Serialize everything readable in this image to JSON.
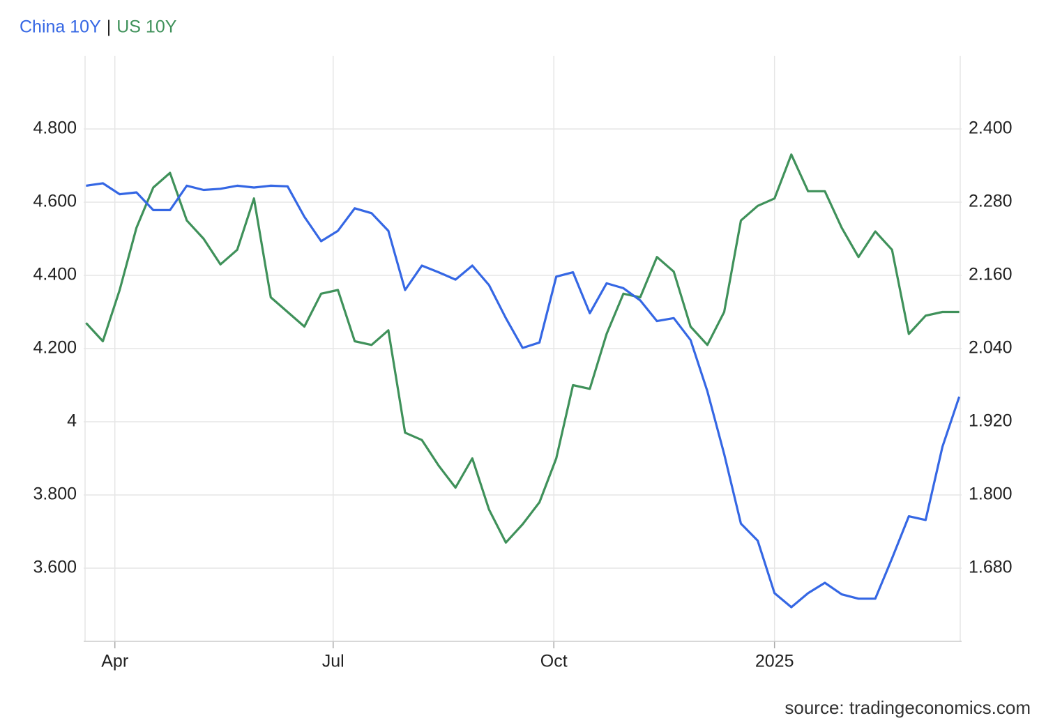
{
  "chart_data": {
    "type": "line",
    "title_separator": "|",
    "source": "source: tradingeconomics.com",
    "x": [
      "2024-03-20",
      "2024-03-27",
      "2024-04-03",
      "2024-04-10",
      "2024-04-17",
      "2024-04-24",
      "2024-05-01",
      "2024-05-08",
      "2024-05-15",
      "2024-05-22",
      "2024-05-29",
      "2024-06-05",
      "2024-06-12",
      "2024-06-19",
      "2024-06-26",
      "2024-07-03",
      "2024-07-10",
      "2024-07-17",
      "2024-07-24",
      "2024-07-31",
      "2024-08-07",
      "2024-08-14",
      "2024-08-21",
      "2024-08-28",
      "2024-09-04",
      "2024-09-11",
      "2024-09-18",
      "2024-09-25",
      "2024-10-02",
      "2024-10-09",
      "2024-10-16",
      "2024-10-23",
      "2024-10-30",
      "2024-11-06",
      "2024-11-13",
      "2024-11-20",
      "2024-11-27",
      "2024-12-04",
      "2024-12-11",
      "2024-12-18",
      "2024-12-25",
      "2025-01-01",
      "2025-01-08",
      "2025-01-15",
      "2025-01-22",
      "2025-01-29",
      "2025-02-05",
      "2025-02-12",
      "2025-02-19",
      "2025-02-26",
      "2025-03-05",
      "2025-03-12",
      "2025-03-19"
    ],
    "series": [
      {
        "name": "China 10Y",
        "color": "#3567e4",
        "axis": "y2",
        "values": [
          2.307,
          2.311,
          2.293,
          2.296,
          2.267,
          2.267,
          2.307,
          2.3,
          2.302,
          2.307,
          2.304,
          2.307,
          2.306,
          2.256,
          2.216,
          2.233,
          2.27,
          2.262,
          2.233,
          2.136,
          2.176,
          2.165,
          2.153,
          2.176,
          2.144,
          2.09,
          2.041,
          2.05,
          2.158,
          2.165,
          2.098,
          2.147,
          2.139,
          2.119,
          2.085,
          2.09,
          2.054,
          1.97,
          1.867,
          1.753,
          1.725,
          1.639,
          1.616,
          1.639,
          1.656,
          1.637,
          1.63,
          1.63,
          1.696,
          1.765,
          1.759,
          1.879,
          1.961
        ]
      },
      {
        "name": "US 10Y",
        "color": "#3f915a",
        "values": [
          4.27,
          4.22,
          4.36,
          4.53,
          4.64,
          4.68,
          4.55,
          4.5,
          4.43,
          4.47,
          4.61,
          4.34,
          4.3,
          4.26,
          4.35,
          4.36,
          4.22,
          4.21,
          4.25,
          3.97,
          3.95,
          3.88,
          3.82,
          3.9,
          3.76,
          3.67,
          3.72,
          3.78,
          3.9,
          4.1,
          4.09,
          4.24,
          4.35,
          4.34,
          4.45,
          4.41,
          4.26,
          4.21,
          4.3,
          4.55,
          4.59,
          4.61,
          4.73,
          4.63,
          4.63,
          4.53,
          4.45,
          4.52,
          4.47,
          4.24,
          4.29,
          4.3,
          4.3
        ]
      }
    ],
    "xlim": [
      "2024-03-19",
      "2025-03-20"
    ],
    "xticks": [
      {
        "value": "2024-04-01",
        "label": "Apr"
      },
      {
        "value": "2024-07-01",
        "label": "Jul"
      },
      {
        "value": "2024-10-01",
        "label": "Oct"
      },
      {
        "value": "2025-01-01",
        "label": "2025"
      }
    ],
    "ylim": [
      3.4,
      5.0
    ],
    "yticks": [
      {
        "value": 3.6,
        "label": "3.600"
      },
      {
        "value": 3.8,
        "label": "3.800"
      },
      4,
      {
        "value": 4.2,
        "label": "4.200"
      },
      {
        "value": 4.4,
        "label": "4.400"
      },
      {
        "value": 4.6,
        "label": "4.600"
      },
      {
        "value": 4.8,
        "label": "4.800"
      }
    ],
    "y2lim": [
      1.56,
      2.52
    ],
    "y2ticks": [
      {
        "value": 1.68,
        "label": "1.680"
      },
      {
        "value": 1.8,
        "label": "1.800"
      },
      {
        "value": 1.92,
        "label": "1.920"
      },
      {
        "value": 2.04,
        "label": "2.040"
      },
      {
        "value": 2.16,
        "label": "2.160"
      },
      {
        "value": 2.28,
        "label": "2.280"
      },
      {
        "value": 2.4,
        "label": "2.400"
      }
    ],
    "grid": true
  }
}
